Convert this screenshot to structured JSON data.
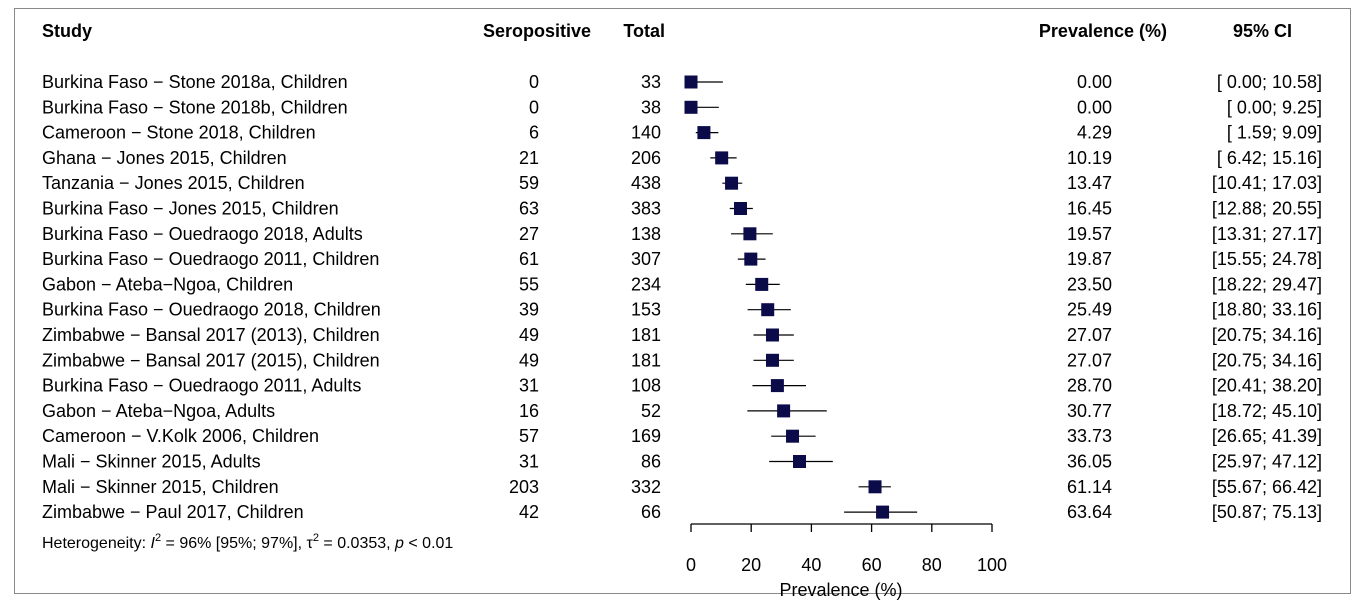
{
  "chart_data": {
    "type": "forest",
    "headers": {
      "study": "Study",
      "seropositive": "Seropositive",
      "total": "Total",
      "prevalence": "Prevalence (%)",
      "ci": "95% CI"
    },
    "xlabel": "Prevalence (%)",
    "xlim": [
      0,
      100
    ],
    "xticks": [
      "0",
      "20",
      "40",
      "60",
      "80",
      "100"
    ],
    "marker_color": "#0b0b4a",
    "studies": [
      {
        "study": "Burkina Faso − Stone 2018a, Children",
        "seropositive": "0",
        "total": "33",
        "prevalence": "0.00",
        "ci": "[ 0.00; 10.58]",
        "est": 0.0,
        "lo": 0.0,
        "hi": 10.58
      },
      {
        "study": "Burkina Faso − Stone 2018b, Children",
        "seropositive": "0",
        "total": "38",
        "prevalence": "0.00",
        "ci": "[ 0.00;  9.25]",
        "est": 0.0,
        "lo": 0.0,
        "hi": 9.25
      },
      {
        "study": "Cameroon − Stone 2018, Children",
        "seropositive": "6",
        "total": "140",
        "prevalence": "4.29",
        "ci": "[ 1.59;  9.09]",
        "est": 4.29,
        "lo": 1.59,
        "hi": 9.09
      },
      {
        "study": "Ghana − Jones 2015, Children",
        "seropositive": "21",
        "total": "206",
        "prevalence": "10.19",
        "ci": "[ 6.42; 15.16]",
        "est": 10.19,
        "lo": 6.42,
        "hi": 15.16
      },
      {
        "study": "Tanzania − Jones 2015, Children",
        "seropositive": "59",
        "total": "438",
        "prevalence": "13.47",
        "ci": "[10.41; 17.03]",
        "est": 13.47,
        "lo": 10.41,
        "hi": 17.03
      },
      {
        "study": "Burkina Faso − Jones 2015, Children",
        "seropositive": "63",
        "total": "383",
        "prevalence": "16.45",
        "ci": "[12.88; 20.55]",
        "est": 16.45,
        "lo": 12.88,
        "hi": 20.55
      },
      {
        "study": "Burkina Faso − Ouedraogo 2018, Adults",
        "seropositive": "27",
        "total": "138",
        "prevalence": "19.57",
        "ci": "[13.31; 27.17]",
        "est": 19.57,
        "lo": 13.31,
        "hi": 27.17
      },
      {
        "study": "Burkina Faso − Ouedraogo 2011, Children",
        "seropositive": "61",
        "total": "307",
        "prevalence": "19.87",
        "ci": "[15.55; 24.78]",
        "est": 19.87,
        "lo": 15.55,
        "hi": 24.78
      },
      {
        "study": "Gabon − Ateba−Ngoa, Children",
        "seropositive": "55",
        "total": "234",
        "prevalence": "23.50",
        "ci": "[18.22; 29.47]",
        "est": 23.5,
        "lo": 18.22,
        "hi": 29.47
      },
      {
        "study": "Burkina Faso − Ouedraogo 2018, Children",
        "seropositive": "39",
        "total": "153",
        "prevalence": "25.49",
        "ci": "[18.80; 33.16]",
        "est": 25.49,
        "lo": 18.8,
        "hi": 33.16
      },
      {
        "study": "Zimbabwe − Bansal 2017 (2013), Children",
        "seropositive": "49",
        "total": "181",
        "prevalence": "27.07",
        "ci": "[20.75; 34.16]",
        "est": 27.07,
        "lo": 20.75,
        "hi": 34.16
      },
      {
        "study": "Zimbabwe − Bansal 2017 (2015), Children",
        "seropositive": "49",
        "total": "181",
        "prevalence": "27.07",
        "ci": "[20.75; 34.16]",
        "est": 27.07,
        "lo": 20.75,
        "hi": 34.16
      },
      {
        "study": "Burkina Faso − Ouedraogo 2011, Adults",
        "seropositive": "31",
        "total": "108",
        "prevalence": "28.70",
        "ci": "[20.41; 38.20]",
        "est": 28.7,
        "lo": 20.41,
        "hi": 38.2
      },
      {
        "study": "Gabon − Ateba−Ngoa, Adults",
        "seropositive": "16",
        "total": "52",
        "prevalence": "30.77",
        "ci": "[18.72; 45.10]",
        "est": 30.77,
        "lo": 18.72,
        "hi": 45.1
      },
      {
        "study": "Cameroon − V.Kolk 2006, Children",
        "seropositive": "57",
        "total": "169",
        "prevalence": "33.73",
        "ci": "[26.65; 41.39]",
        "est": 33.73,
        "lo": 26.65,
        "hi": 41.39
      },
      {
        "study": "Mali − Skinner 2015, Adults",
        "seropositive": "31",
        "total": "86",
        "prevalence": "36.05",
        "ci": "[25.97; 47.12]",
        "est": 36.05,
        "lo": 25.97,
        "hi": 47.12
      },
      {
        "study": "Mali − Skinner 2015, Children",
        "seropositive": "203",
        "total": "332",
        "prevalence": "61.14",
        "ci": "[55.67; 66.42]",
        "est": 61.14,
        "lo": 55.67,
        "hi": 66.42
      },
      {
        "study": "Zimbabwe − Paul 2017, Children",
        "seropositive": "42",
        "total": "66",
        "prevalence": "63.64",
        "ci": "[50.87; 75.13]",
        "est": 63.64,
        "lo": 50.87,
        "hi": 75.13
      }
    ],
    "heterogeneity": {
      "prefix": "Heterogeneity: ",
      "i_symbol": "I",
      "sup": "2",
      "part1": " = 96% [95%; 97%], ",
      "tau_symbol": "τ",
      "part2": " = 0.0353, ",
      "p_symbol": "p",
      "part3": " < 0.01"
    }
  }
}
